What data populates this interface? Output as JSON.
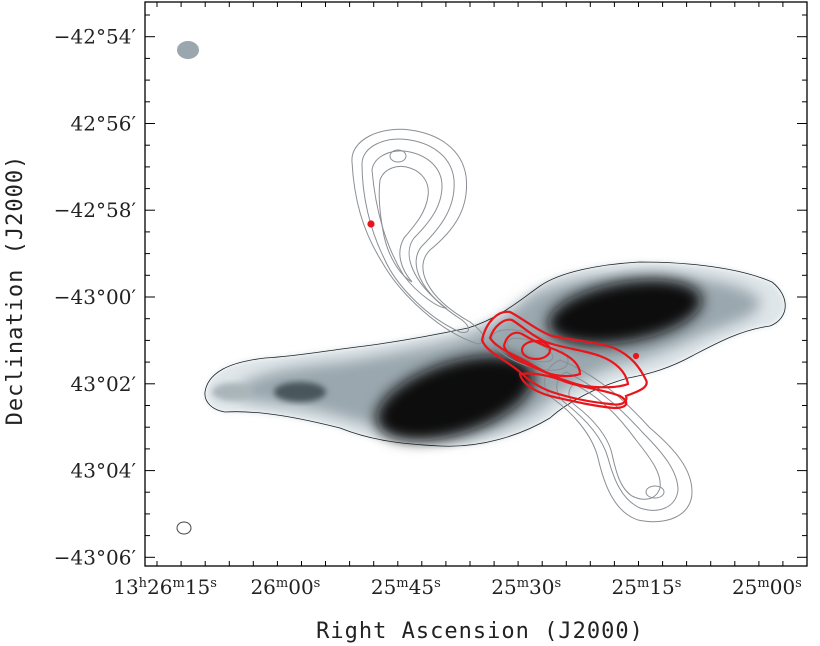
{
  "chart_data": {
    "type": "contour",
    "xlabel": "Right Ascension (J2000)",
    "ylabel": "Declination (J2000)",
    "x_ticks": [
      {
        "ra_sec": 975,
        "label": "13h26m15s"
      },
      {
        "ra_sec": 960,
        "label": "26m00s"
      },
      {
        "ra_sec": 945,
        "label": "25m45s"
      },
      {
        "ra_sec": 930,
        "label": "25m30s"
      },
      {
        "ra_sec": 915,
        "label": "25m15s"
      },
      {
        "ra_sec": 900,
        "label": "25m00s"
      }
    ],
    "y_ticks": [
      {
        "dec_arcmin": -54,
        "label": "−42°54′"
      },
      {
        "dec_arcmin": -56,
        "label": "42°56′"
      },
      {
        "dec_arcmin": -58,
        "label": "−42°58′"
      },
      {
        "dec_arcmin": -60,
        "label": "−43°00′"
      },
      {
        "dec_arcmin": -62,
        "label": "43°02′"
      },
      {
        "dec_arcmin": -64,
        "label": "43°04′"
      },
      {
        "dec_arcmin": -66,
        "label": "−43°06′"
      }
    ],
    "x_range_ra_sec": [
      977.5,
      895.0
    ],
    "y_range_dec_arcmin": [
      -53.2,
      -66.2
    ],
    "grid": false,
    "colors": {
      "greyscale_emission": "#0b0e10",
      "grey_contours": "#8a8f94",
      "red_contours": "#e8161b",
      "frame": "#000000"
    }
  }
}
